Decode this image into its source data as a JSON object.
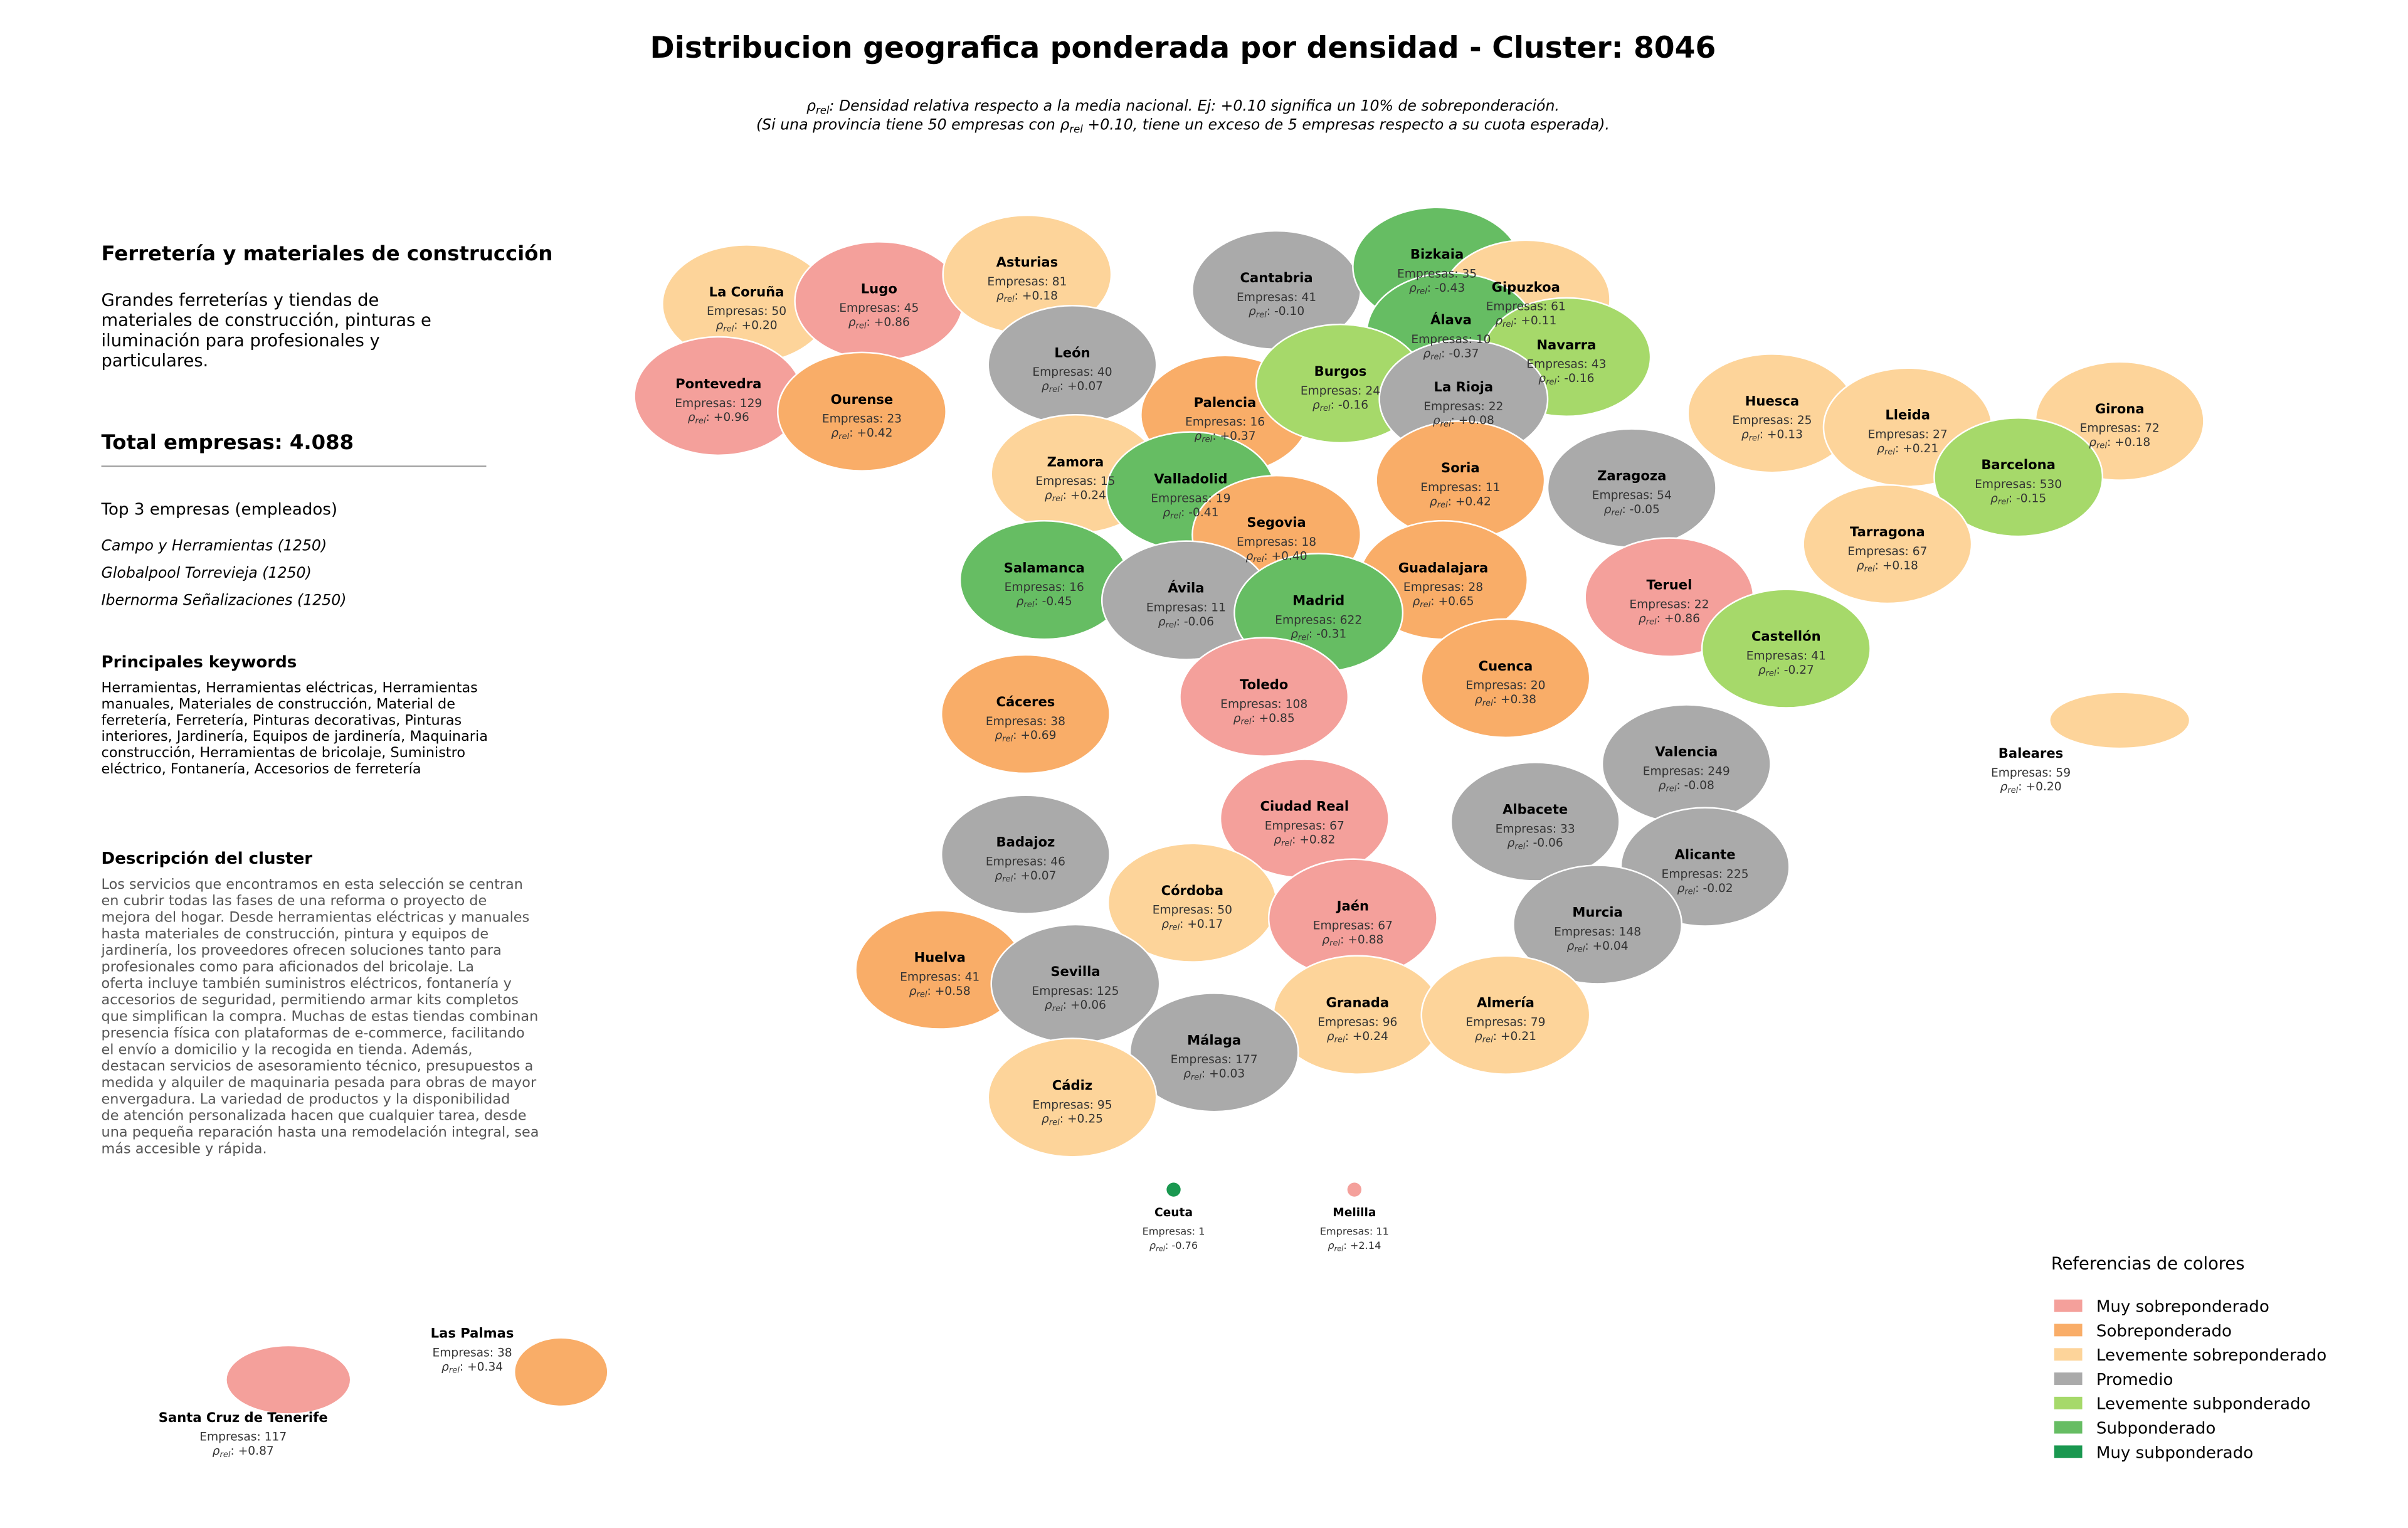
{
  "title": "Distribucion geografica ponderada por densidad - Cluster: 8046",
  "note": {
    "line1": {
      "symbol": "ρ",
      "sub": "rel",
      "text": ": Densidad relativa respecto a la media nacional. Ej: +0.10 significa un 10% de sobreponderación."
    },
    "line2": {
      "pre": "(Si una provincia tiene 50 empresas con ",
      "symbol": "ρ",
      "sub": "rel",
      "post": " +0.10, tiene un exceso de 5 empresas respecto a su cuota esperada)."
    }
  },
  "panel": {
    "sector": "Ferretería y materiales de construcción",
    "summary": [
      "Grandes ferreterías y tiendas de",
      "materiales de construcción, pinturas e",
      "iluminación para profesionales y",
      "particulares."
    ],
    "total": "Total empresas: 4.088",
    "top_title": "Top 3 empresas (empleados)",
    "top": [
      "Campo y Herramientas (1250)",
      "Globalpool Torrevieja (1250)",
      "Ibernorma Señalizaciones (1250)"
    ],
    "keywords_title": "Principales keywords",
    "keywords": [
      "Herramientas, Herramientas eléctricas, Herramientas",
      "manuales, Materiales de construcción, Material de",
      "ferretería, Ferretería, Pinturas decorativas, Pinturas",
      "interiores, Jardinería, Equipos de jardinería, Maquinaria",
      "construcción, Herramientas de bricolaje, Suministro",
      "eléctrico, Fontanería, Accesorios de ferretería"
    ],
    "description_title": "Descripción del cluster",
    "description": [
      "Los servicios que encontramos en esta selección se centran",
      "en cubrir todas las fases de una reforma o proyecto de",
      "mejora del hogar. Desde herramientas eléctricas y manuales",
      "hasta materiales de construcción, pintura y equipos de",
      "jardinería, los proveedores ofrecen soluciones tanto para",
      "profesionales como para aficionados del bricolaje. La",
      "oferta incluye también suministros eléctricos, fontanería y",
      "accesorios de seguridad, permitiendo armar kits completos",
      "que simplifican la compra. Muchas de estas tiendas combinan",
      "presencia física con plataformas de e-commerce, facilitando",
      "el envío a domicilio y la recogida en tienda. Además,",
      "destacan servicios de asesoramiento técnico, presupuestos a",
      "medida y alquiler de maquinaria pesada para obras de mayor",
      "envergadura. La variedad de productos y la disponibilidad",
      "de atención personalizada hacen que cualquier tarea, desde",
      "una pequeña reparación hasta una remodelación integral, sea",
      "más accesible y rápida."
    ]
  },
  "rho_label": {
    "symbol": "ρ",
    "sub": "rel",
    "sep": ": "
  },
  "provinces": [
    {
      "name": "La Coruña",
      "empresas": "Empresas: 50",
      "rho": "+0.20",
      "color": "#fdd49a"
    },
    {
      "name": "Lugo",
      "empresas": "Empresas: 45",
      "rho": "+0.86",
      "color": "#f4a09b"
    },
    {
      "name": "Asturias",
      "empresas": "Empresas: 81",
      "rho": "+0.18",
      "color": "#fdd49a"
    },
    {
      "name": "Cantabria",
      "empresas": "Empresas: 41",
      "rho": "-0.10",
      "color": "#aaaaaa"
    },
    {
      "name": "Bizkaia",
      "empresas": "Empresas: 35",
      "rho": "-0.43",
      "color": "#66bd63"
    },
    {
      "name": "Gipuzkoa",
      "empresas": "Empresas: 61",
      "rho": "+0.11",
      "color": "#fdd49a"
    },
    {
      "name": "Álava",
      "empresas": "Empresas: 10",
      "rho": "-0.37",
      "color": "#66bd63"
    },
    {
      "name": "Navarra",
      "empresas": "Empresas: 43",
      "rho": "-0.16",
      "color": "#a6d96a"
    },
    {
      "name": "Pontevedra",
      "empresas": "Empresas: 129",
      "rho": "+0.96",
      "color": "#f4a09b"
    },
    {
      "name": "Ourense",
      "empresas": "Empresas: 23",
      "rho": "+0.42",
      "color": "#f9ad68"
    },
    {
      "name": "León",
      "empresas": "Empresas: 40",
      "rho": "+0.07",
      "color": "#aaaaaa"
    },
    {
      "name": "Palencia",
      "empresas": "Empresas: 16",
      "rho": "+0.37",
      "color": "#f9ad68"
    },
    {
      "name": "Burgos",
      "empresas": "Empresas: 24",
      "rho": "-0.16",
      "color": "#a6d96a"
    },
    {
      "name": "La Rioja",
      "empresas": "Empresas: 22",
      "rho": "+0.08",
      "color": "#aaaaaa"
    },
    {
      "name": "Huesca",
      "empresas": "Empresas: 25",
      "rho": "+0.13",
      "color": "#fdd49a"
    },
    {
      "name": "Lleida",
      "empresas": "Empresas: 27",
      "rho": "+0.21",
      "color": "#fdd49a"
    },
    {
      "name": "Girona",
      "empresas": "Empresas: 72",
      "rho": "+0.18",
      "color": "#fdd49a"
    },
    {
      "name": "Barcelona",
      "empresas": "Empresas: 530",
      "rho": "-0.15",
      "color": "#a6d96a"
    },
    {
      "name": "Zamora",
      "empresas": "Empresas: 15",
      "rho": "+0.24",
      "color": "#fdd49a"
    },
    {
      "name": "Valladolid",
      "empresas": "Empresas: 19",
      "rho": "-0.41",
      "color": "#66bd63"
    },
    {
      "name": "Soria",
      "empresas": "Empresas: 11",
      "rho": "+0.42",
      "color": "#f9ad68"
    },
    {
      "name": "Zaragoza",
      "empresas": "Empresas: 54",
      "rho": "-0.05",
      "color": "#aaaaaa"
    },
    {
      "name": "Tarragona",
      "empresas": "Empresas: 67",
      "rho": "+0.18",
      "color": "#fdd49a"
    },
    {
      "name": "Segovia",
      "empresas": "Empresas: 18",
      "rho": "+0.40",
      "color": "#f9ad68"
    },
    {
      "name": "Salamanca",
      "empresas": "Empresas: 16",
      "rho": "-0.45",
      "color": "#66bd63"
    },
    {
      "name": "Guadalajara",
      "empresas": "Empresas: 28",
      "rho": "+0.65",
      "color": "#f9ad68"
    },
    {
      "name": "Teruel",
      "empresas": "Empresas: 22",
      "rho": "+0.86",
      "color": "#f4a09b"
    },
    {
      "name": "Ávila",
      "empresas": "Empresas: 11",
      "rho": "-0.06",
      "color": "#aaaaaa"
    },
    {
      "name": "Madrid",
      "empresas": "Empresas: 622",
      "rho": "-0.31",
      "color": "#66bd63"
    },
    {
      "name": "Castellón",
      "empresas": "Empresas: 41",
      "rho": "-0.27",
      "color": "#a6d96a"
    },
    {
      "name": "Toledo",
      "empresas": "Empresas: 108",
      "rho": "+0.85",
      "color": "#f4a09b"
    },
    {
      "name": "Cuenca",
      "empresas": "Empresas: 20",
      "rho": "+0.38",
      "color": "#f9ad68"
    },
    {
      "name": "Cáceres",
      "empresas": "Empresas: 38",
      "rho": "+0.69",
      "color": "#f9ad68"
    },
    {
      "name": "Valencia",
      "empresas": "Empresas: 249",
      "rho": "-0.08",
      "color": "#aaaaaa"
    },
    {
      "name": "Baleares",
      "empresas": "Empresas: 59",
      "rho": "+0.20",
      "color": "#fdd49a"
    },
    {
      "name": "Ciudad Real",
      "empresas": "Empresas: 67",
      "rho": "+0.82",
      "color": "#f4a09b"
    },
    {
      "name": "Albacete",
      "empresas": "Empresas: 33",
      "rho": "-0.06",
      "color": "#aaaaaa"
    },
    {
      "name": "Badajoz",
      "empresas": "Empresas: 46",
      "rho": "+0.07",
      "color": "#aaaaaa"
    },
    {
      "name": "Alicante",
      "empresas": "Empresas: 225",
      "rho": "-0.02",
      "color": "#aaaaaa"
    },
    {
      "name": "Córdoba",
      "empresas": "Empresas: 50",
      "rho": "+0.17",
      "color": "#fdd49a"
    },
    {
      "name": "Jaén",
      "empresas": "Empresas: 67",
      "rho": "+0.88",
      "color": "#f4a09b"
    },
    {
      "name": "Murcia",
      "empresas": "Empresas: 148",
      "rho": "+0.04",
      "color": "#aaaaaa"
    },
    {
      "name": "Huelva",
      "empresas": "Empresas: 41",
      "rho": "+0.58",
      "color": "#f9ad68"
    },
    {
      "name": "Sevilla",
      "empresas": "Empresas: 125",
      "rho": "+0.06",
      "color": "#aaaaaa"
    },
    {
      "name": "Granada",
      "empresas": "Empresas: 96",
      "rho": "+0.24",
      "color": "#fdd49a"
    },
    {
      "name": "Almería",
      "empresas": "Empresas: 79",
      "rho": "+0.21",
      "color": "#fdd49a"
    },
    {
      "name": "Málaga",
      "empresas": "Empresas: 177",
      "rho": "+0.03",
      "color": "#aaaaaa"
    },
    {
      "name": "Cádiz",
      "empresas": "Empresas: 95",
      "rho": "+0.25",
      "color": "#fdd49a"
    },
    {
      "name": "Ceuta",
      "empresas": "Empresas: 1",
      "rho": "-0.76",
      "color": "#1a9850"
    },
    {
      "name": "Melilla",
      "empresas": "Empresas: 11",
      "rho": "+2.14",
      "color": "#f4a09b"
    },
    {
      "name": "Las Palmas",
      "empresas": "Empresas: 38",
      "rho": "+0.34",
      "color": "#f9ad68"
    },
    {
      "name": "Santa Cruz de Tenerife",
      "empresas": "Empresas: 117",
      "rho": "+0.87",
      "color": "#f4a09b"
    }
  ],
  "legend": {
    "title": "Referencias de colores",
    "items": [
      {
        "name": "Muy sobreponderado",
        "color": "#f4a09b"
      },
      {
        "name": "Sobreponderado",
        "color": "#f9ad68"
      },
      {
        "name": "Levemente sobreponderado",
        "color": "#fdd49a"
      },
      {
        "name": "Promedio",
        "color": "#aaaaaa"
      },
      {
        "name": "Levemente subponderado",
        "color": "#a6d96a"
      },
      {
        "name": "Subponderado",
        "color": "#66bd63"
      },
      {
        "name": "Muy subponderado",
        "color": "#1a9850"
      }
    ]
  }
}
